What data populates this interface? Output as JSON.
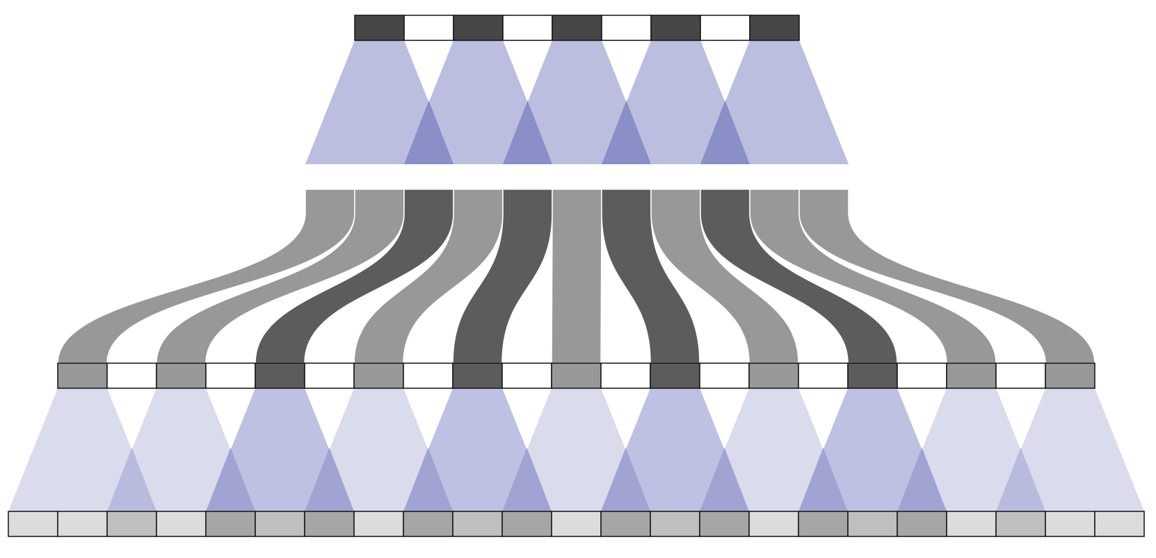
{
  "diagram": {
    "kind": "upsampling-convolution-stack",
    "colors": {
      "dark_cell": "#474747",
      "dark_mid_cell": "#5c5c5c",
      "mid_cell": "#989898",
      "empty_cell": "#ffffff",
      "bottom_light": "#dcdcdc",
      "bottom_mid": "#bfbfbf",
      "bottom_dark": "#a6a6a6",
      "kernel_fill": "#bcbee0",
      "kernel_overlap": "#8a8fc8",
      "kernel_light": "#dadbed",
      "kernel_light_overlap": "#b9bbde",
      "kernel_deep_overlap": "#a1a4d3",
      "cell_border": "#111111"
    },
    "top_row": [
      "dark",
      "empty",
      "dark",
      "empty",
      "dark",
      "empty",
      "dark",
      "empty",
      "dark"
    ],
    "middle_row": [
      "mid",
      "mid",
      "dark",
      "mid",
      "dark",
      "mid",
      "dark",
      "mid",
      "dark",
      "mid",
      "mid"
    ],
    "third_row": [
      "mid",
      "empty",
      "mid",
      "empty",
      "dark",
      "empty",
      "mid",
      "empty",
      "dark",
      "empty",
      "mid",
      "empty",
      "dark",
      "empty",
      "mid",
      "empty",
      "dark",
      "empty",
      "mid",
      "empty",
      "mid"
    ],
    "bottom_row": [
      "light",
      "light",
      "mid",
      "light",
      "dark",
      "mid",
      "dark",
      "light",
      "dark",
      "mid",
      "dark",
      "light",
      "dark",
      "mid",
      "dark",
      "light",
      "dark",
      "mid",
      "dark",
      "light",
      "mid",
      "light",
      "light"
    ],
    "ribbon_sources": [
      0,
      1,
      2,
      3,
      4,
      5,
      6,
      7,
      8,
      9,
      10
    ],
    "ribbon_targets": [
      0,
      2,
      4,
      6,
      8,
      10,
      12,
      14,
      16,
      18,
      20
    ],
    "ribbon_tones": [
      "mid",
      "mid",
      "dark",
      "mid",
      "dark",
      "mid",
      "dark",
      "mid",
      "dark",
      "mid",
      "mid"
    ],
    "kernel_centers": [
      0,
      2,
      4,
      6,
      8,
      10,
      12,
      14,
      16,
      18,
      20
    ],
    "kernel_intensity": [
      "light",
      "light",
      "mid",
      "light",
      "mid",
      "light",
      "mid",
      "light",
      "mid",
      "light",
      "light"
    ]
  }
}
